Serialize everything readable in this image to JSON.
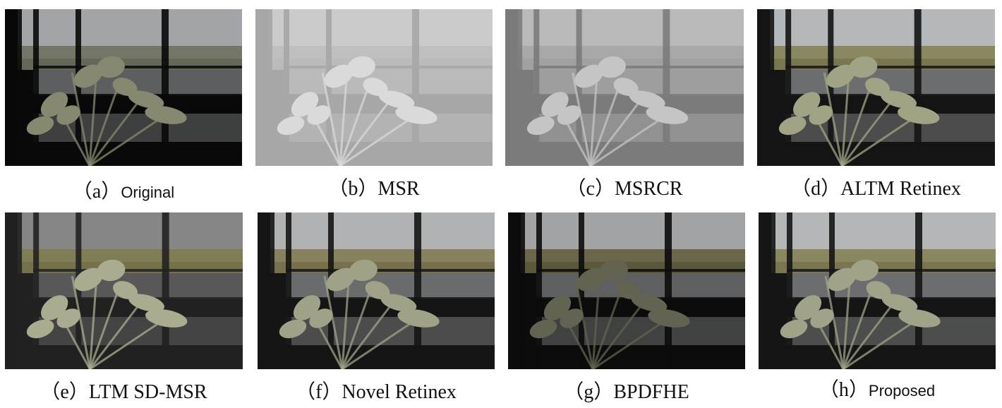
{
  "figure": {
    "panels": [
      {
        "label": "（a）",
        "method": "Original",
        "tone": {
          "sky": "#dfe3e6",
          "scene": "#9a9d86",
          "dark": "#0d0d0d",
          "lily": "#b9bd9a",
          "brightness": 0.55
        }
      },
      {
        "label": "（b）",
        "method": "MSR",
        "tone": {
          "sky": "#d6d6d6",
          "scene": "#c9c9c9",
          "dark": "#b0b0b0",
          "lily": "#e6e6e6",
          "brightness": 1.0
        }
      },
      {
        "label": "（c）",
        "method": "MSRCR",
        "tone": {
          "sky": "#cfcfcf",
          "scene": "#b8b8b8",
          "dark": "#8a8a8a",
          "lily": "#dcdcdc",
          "brightness": 0.9
        }
      },
      {
        "label": "（d）",
        "method": "ALTM Retinex",
        "tone": {
          "sky": "#e3e6e9",
          "scene": "#a6a36b",
          "dark": "#1a1a1a",
          "lily": "#c9cda6",
          "brightness": 0.7
        }
      },
      {
        "label": "（e）",
        "method": "LTM SD-MSR",
        "tone": {
          "sky": "#a8a8a8",
          "scene": "#9e9a63",
          "dark": "#2a2a2a",
          "lily": "#d4d8b2",
          "brightness": 0.7
        }
      },
      {
        "label": "（f）",
        "method": "Novel Retinex",
        "tone": {
          "sky": "#e4e6e8",
          "scene": "#a89f6d",
          "dark": "#1c1c1c",
          "lily": "#cfd1b0",
          "brightness": 0.65
        }
      },
      {
        "label": "（g）",
        "method": "BPDFHE",
        "tone": {
          "sky": "#e8eaec",
          "scene": "#8f8a5c",
          "dark": "#121212",
          "lily": "#8d8f74",
          "brightness": 0.5
        }
      },
      {
        "label": "（h）",
        "method": "Proposed",
        "tone": {
          "sky": "#e2e4e6",
          "scene": "#a7a26d",
          "dark": "#1b1b1b",
          "lily": "#c9ccaa",
          "brightness": 0.7
        }
      }
    ]
  }
}
